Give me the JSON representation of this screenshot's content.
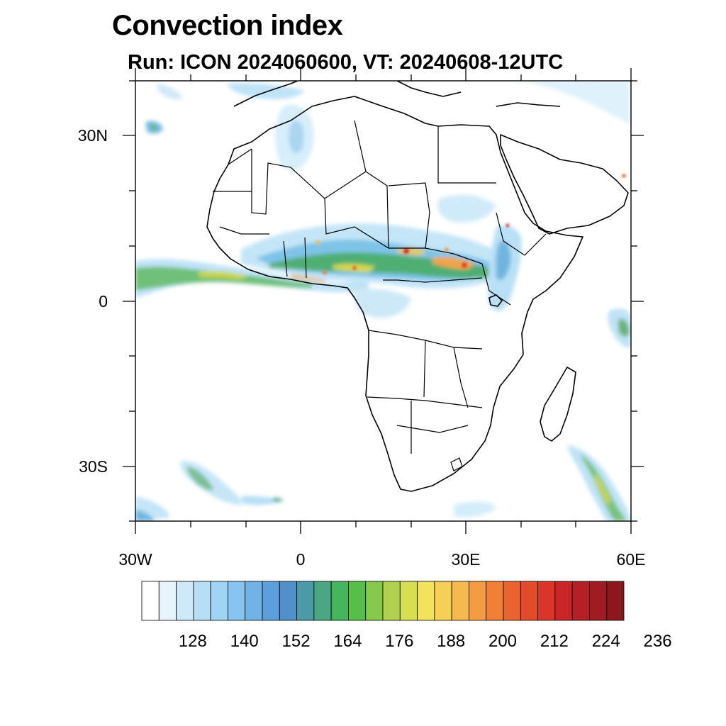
{
  "header": {
    "title": "Convection index",
    "subtitle": "Run: ICON 2024060600,  VT: 20240608-12UTC"
  },
  "map": {
    "lon_range": [
      -30,
      60
    ],
    "lat_range": [
      -40,
      40
    ],
    "lat_labels": [
      "30N",
      "0",
      "30S"
    ],
    "lon_labels": [
      "30W",
      "0",
      "30E",
      "60E"
    ],
    "coastline_color": "#000000",
    "land_color": "#ffffff",
    "ocean_color": "#ffffff"
  },
  "colorbar": {
    "labels": [
      "128",
      "140",
      "152",
      "164",
      "176",
      "188",
      "200",
      "212",
      "224",
      "236"
    ],
    "colors": [
      "#ffffff",
      "#e8f4fc",
      "#cfe9f8",
      "#b6def5",
      "#9fd4f3",
      "#88c5ee",
      "#72b3e6",
      "#5d9fdb",
      "#4f8fca",
      "#4a9aa8",
      "#4aa683",
      "#45b45c",
      "#58be4a",
      "#86c84a",
      "#b1d14c",
      "#d8de52",
      "#f2e35a",
      "#f7cf55",
      "#f6b94f",
      "#f39c40",
      "#ef8034",
      "#ea652d",
      "#e24a2a",
      "#d93628",
      "#c82627",
      "#b51f26",
      "#a01b22",
      "#8c171c"
    ]
  }
}
